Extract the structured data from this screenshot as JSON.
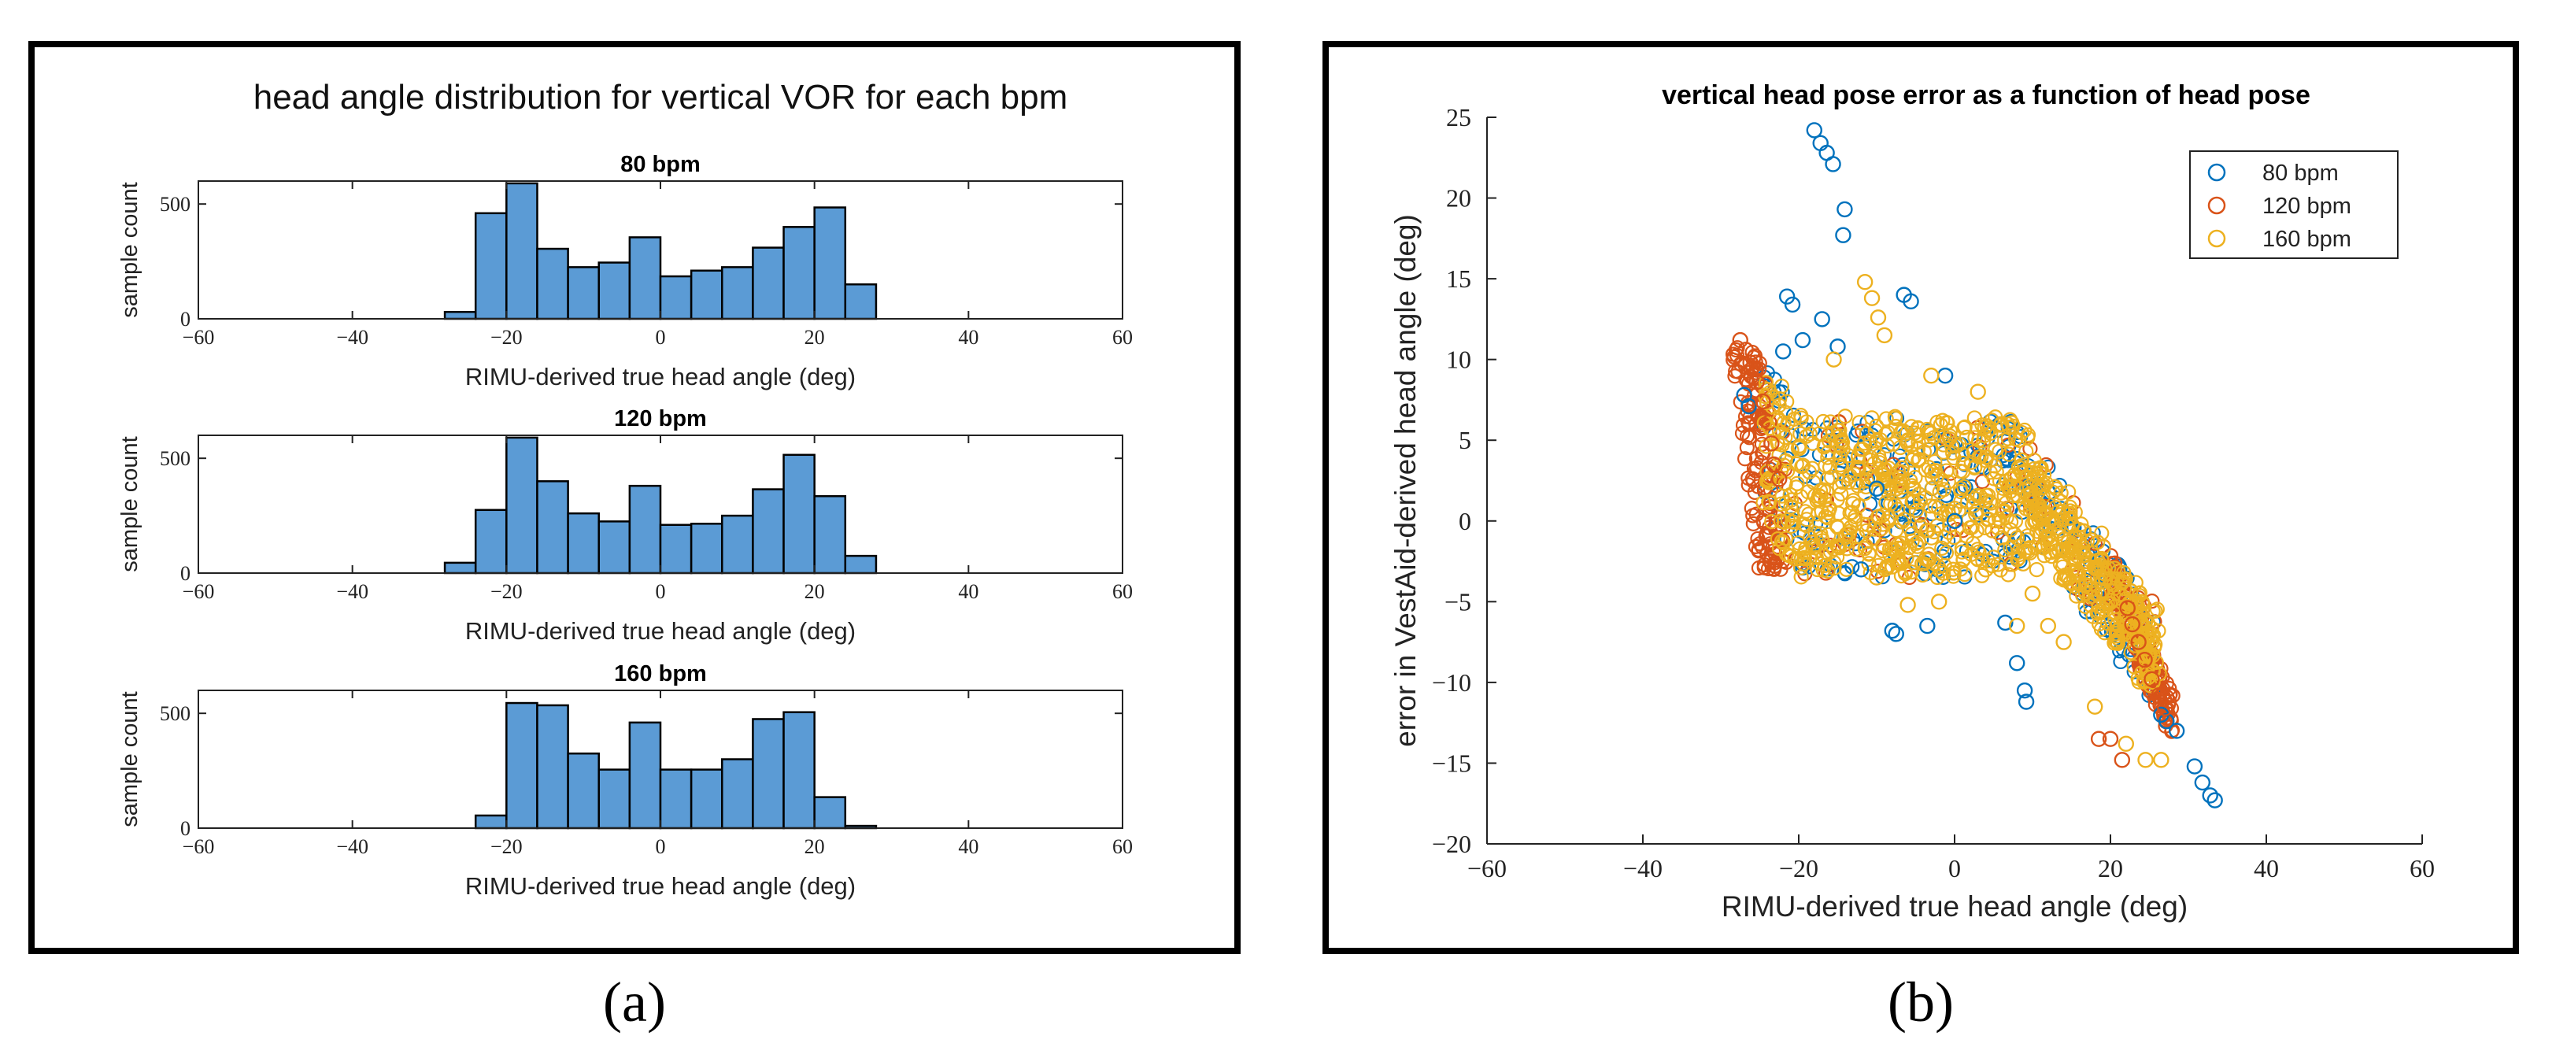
{
  "chart_data": [
    {
      "type": "bar",
      "panel_label": "(a)",
      "title": "head angle distribution for vertical VOR for each bpm",
      "bin_edges": [
        -28,
        -24,
        -20,
        -16,
        -12,
        -8,
        -4,
        0,
        4,
        8,
        12,
        16,
        20,
        24,
        28
      ],
      "x_ticks": [
        -60,
        -40,
        -20,
        0,
        20,
        40,
        60
      ],
      "y_ticks": [
        0,
        500
      ],
      "xlim": [
        -60,
        60
      ],
      "ylim": [
        0,
        600
      ],
      "xlabel": "RIMU-derived true head angle (deg)",
      "ylabel": "sample count",
      "bar_color": "#5b9bd5",
      "subplots": [
        {
          "title": "80 bpm",
          "values": [
            30,
            460,
            590,
            305,
            225,
            245,
            355,
            185,
            210,
            225,
            310,
            400,
            485,
            150
          ]
        },
        {
          "title": "120 bpm",
          "values": [
            45,
            275,
            590,
            400,
            260,
            225,
            380,
            210,
            215,
            250,
            365,
            515,
            335,
            75
          ]
        },
        {
          "title": "160 bpm",
          "values": [
            0,
            55,
            545,
            535,
            325,
            255,
            460,
            255,
            255,
            300,
            475,
            505,
            135,
            10
          ]
        }
      ]
    },
    {
      "type": "scatter",
      "panel_label": "(b)",
      "title": "vertical head pose error as a function of head pose",
      "xlabel": "RIMU-derived true head angle (deg)",
      "ylabel": "error in VestAid-derived head angle (deg)",
      "xlim": [
        -60,
        60
      ],
      "ylim": [
        -20,
        25
      ],
      "x_ticks": [
        -60,
        -40,
        -20,
        0,
        20,
        40,
        60
      ],
      "y_ticks": [
        -20,
        -15,
        -10,
        -5,
        0,
        5,
        10,
        15,
        20,
        25
      ],
      "legend_position": "top-right",
      "series": [
        {
          "name": "80 bpm",
          "color": "#0072bd",
          "points": [
            [
              -18,
              24.2
            ],
            [
              -17.2,
              23.4
            ],
            [
              -16.4,
              22.8
            ],
            [
              -15.6,
              22.1
            ],
            [
              -14.1,
              19.3
            ],
            [
              -14.3,
              17.7
            ],
            [
              -21.5,
              13.9
            ],
            [
              -20.8,
              13.4
            ],
            [
              -17,
              12.5
            ],
            [
              -6.5,
              14
            ],
            [
              -5.6,
              13.6
            ],
            [
              -27,
              7.8
            ],
            [
              -26.4,
              7.1
            ],
            [
              -22,
              10.5
            ],
            [
              -19.5,
              11.2
            ],
            [
              -15,
              10.8
            ],
            [
              -1.2,
              9
            ],
            [
              -7.5,
              -7
            ],
            [
              -8,
              -6.8
            ],
            [
              -3.5,
              -6.5
            ],
            [
              6.5,
              -6.3
            ],
            [
              8,
              -8.8
            ],
            [
              9,
              -10.5
            ],
            [
              9.2,
              -11.2
            ],
            [
              26.5,
              -12
            ],
            [
              27.2,
              -12.4
            ],
            [
              28.5,
              -13
            ],
            [
              30.8,
              -15.2
            ],
            [
              31.8,
              -16.2
            ],
            [
              32.8,
              -17
            ],
            [
              33.4,
              -17.3
            ],
            [
              -12,
              -3
            ],
            [
              -10,
              2
            ],
            [
              0,
              0
            ]
          ]
        },
        {
          "name": "120 bpm",
          "color": "#d95319",
          "points": [
            [
              -27.5,
              11.2
            ],
            [
              -26.8,
              10.6
            ],
            [
              -26.2,
              9.8
            ],
            [
              -25.4,
              8.6
            ],
            [
              -24.6,
              7.4
            ],
            [
              -23.8,
              6.1
            ],
            [
              -23.5,
              4.8
            ],
            [
              -23.2,
              3.5
            ],
            [
              -22.5,
              2.6
            ],
            [
              22.2,
              -5.4
            ],
            [
              22.8,
              -6.4
            ],
            [
              23.6,
              -7.5
            ],
            [
              24.4,
              -8.6
            ],
            [
              25.3,
              -9.8
            ],
            [
              26.2,
              -10.8
            ],
            [
              27,
              -11.6
            ],
            [
              20,
              -13.5
            ],
            [
              21.5,
              -14.8
            ],
            [
              18.5,
              -13.5
            ]
          ]
        },
        {
          "name": "160 bpm",
          "color": "#edb120",
          "points": [
            [
              -11.5,
              14.8
            ],
            [
              -10.6,
              13.8
            ],
            [
              -9.8,
              12.6
            ],
            [
              -9,
              11.5
            ],
            [
              -15.5,
              10
            ],
            [
              -22.5,
              6.2
            ],
            [
              -20,
              4.5
            ],
            [
              -14,
              -1
            ],
            [
              -10,
              -3.5
            ],
            [
              -6,
              -5.2
            ],
            [
              -2,
              -5
            ],
            [
              4,
              -3
            ],
            [
              10,
              -4.5
            ],
            [
              14,
              -7.5
            ],
            [
              18,
              -11.5
            ],
            [
              22,
              -13.8
            ],
            [
              24.5,
              -14.8
            ],
            [
              26.5,
              -14.8
            ],
            [
              6,
              6
            ],
            [
              3,
              8
            ],
            [
              -3,
              9
            ],
            [
              8,
              -6.5
            ],
            [
              12,
              -6.5
            ]
          ]
        }
      ]
    }
  ]
}
